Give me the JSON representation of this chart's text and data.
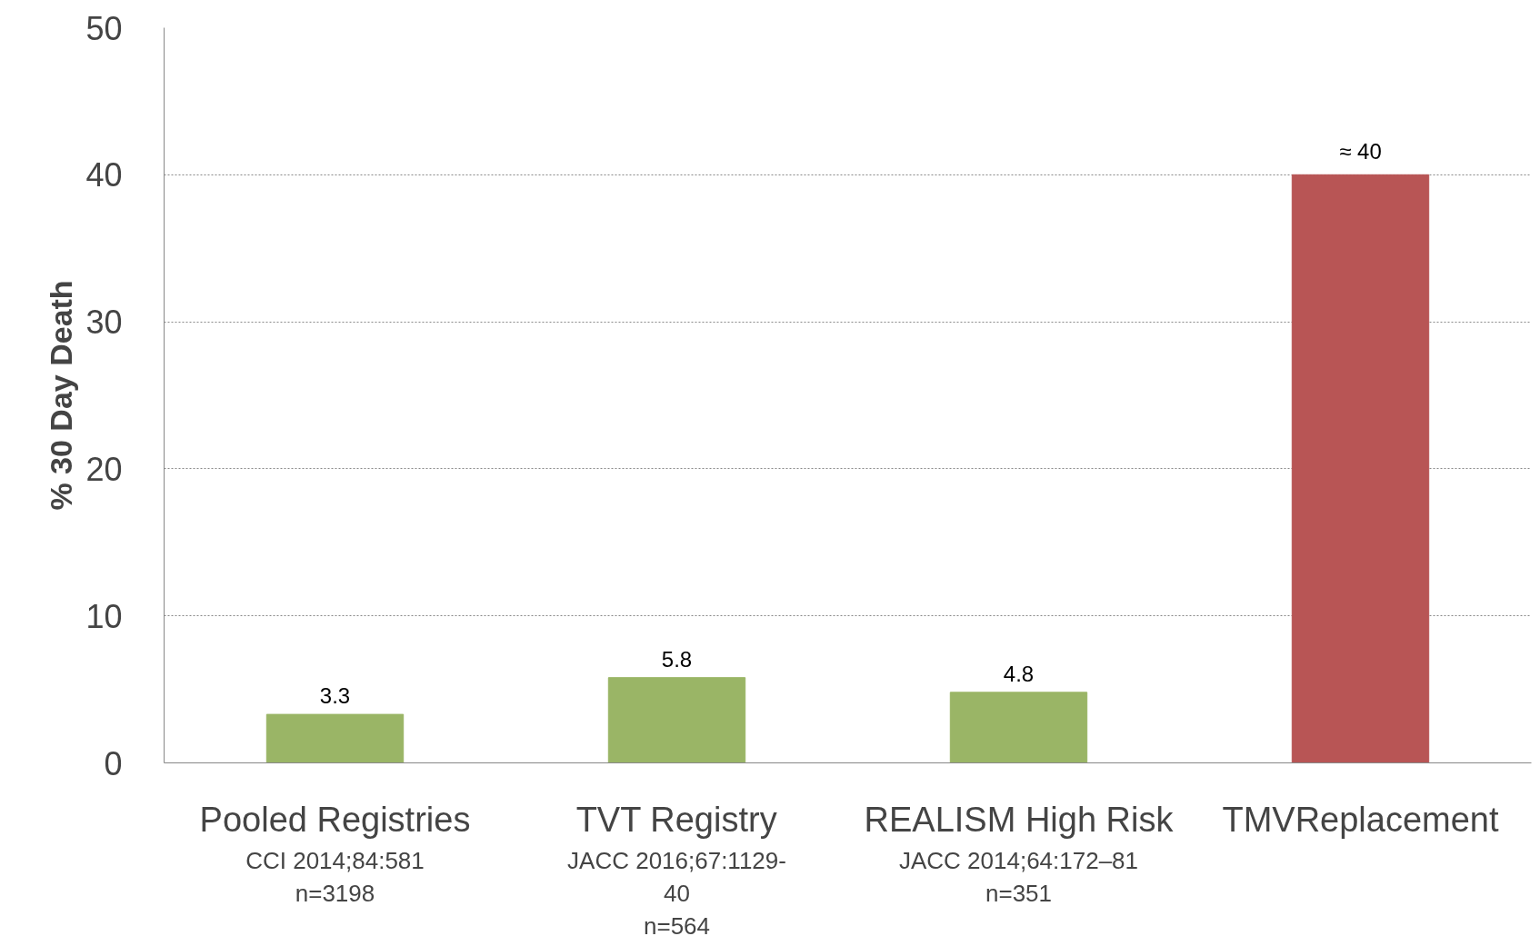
{
  "chart_data": {
    "type": "bar",
    "ylabel": "% 30 Day Death",
    "categories": [
      "Pooled Registries",
      "TVT Registry",
      "REALISM High Risk",
      "TMVReplacement"
    ],
    "values": [
      3.3,
      5.8,
      4.8,
      40
    ],
    "colors": [
      "#9ab566",
      "#9ab566",
      "#9ab566",
      "#b85555"
    ],
    "value_labels": [
      "3.3",
      "5.8",
      "4.8",
      "≈ 40"
    ],
    "ylim": [
      0,
      50
    ],
    "yticks": [
      0,
      10,
      20,
      30,
      40,
      50
    ],
    "grid": "y",
    "annotations": [
      "CCI 2014;84:581\nn=3198",
      "JACC 2016;67:1129-\n40\nn=564",
      "JACC 2014;64:172–81\nn=351"
    ]
  }
}
